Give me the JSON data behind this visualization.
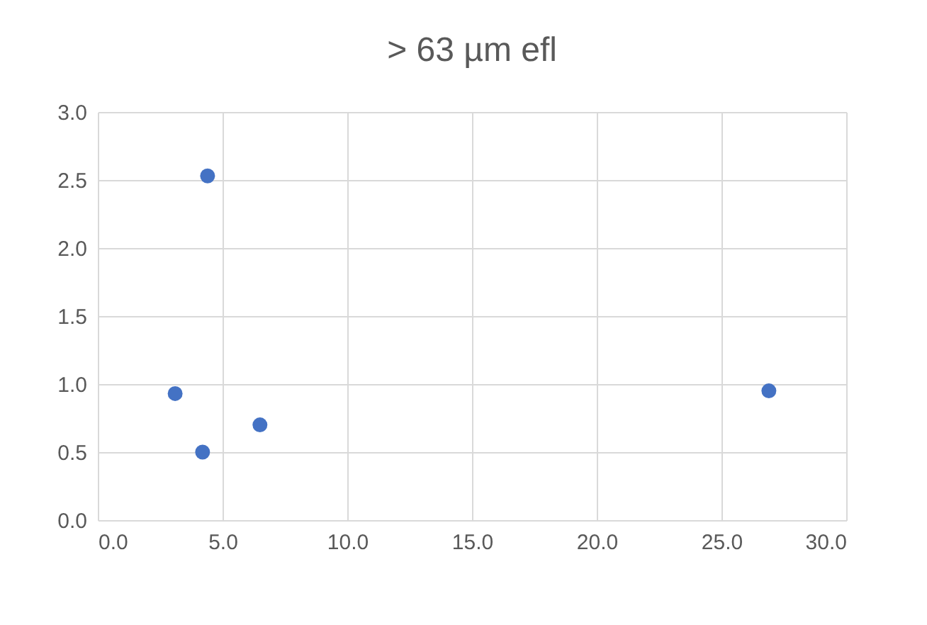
{
  "chart_data": {
    "type": "scatter",
    "title": "> 63 µm efl",
    "x": [
      3.1,
      4.4,
      4.2,
      6.5,
      26.9
    ],
    "series": [
      {
        "color": "#4472c4",
        "values": [
          0.93,
          2.53,
          0.5,
          0.7,
          0.95
        ]
      }
    ],
    "xlim": [
      0,
      30
    ],
    "xticks": [
      {
        "value": 0,
        "label": "0.0"
      },
      {
        "value": 5,
        "label": "5.0"
      },
      {
        "value": 10,
        "label": "10.0"
      },
      {
        "value": 15,
        "label": "15.0"
      },
      {
        "value": 20,
        "label": "20.0"
      },
      {
        "value": 25,
        "label": "25.0"
      },
      {
        "value": 30,
        "label": "30.0"
      }
    ],
    "ylim": [
      0,
      3
    ],
    "yticks": [
      {
        "value": 0,
        "label": "0.0"
      },
      {
        "value": 0.5,
        "label": "0.5"
      },
      {
        "value": 1,
        "label": "1.0"
      },
      {
        "value": 1.5,
        "label": "1.5"
      },
      {
        "value": 2,
        "label": "2.0"
      },
      {
        "value": 2.5,
        "label": "2.5"
      },
      {
        "value": 3,
        "label": "3.0"
      }
    ],
    "grid": true,
    "marker": "circle"
  }
}
